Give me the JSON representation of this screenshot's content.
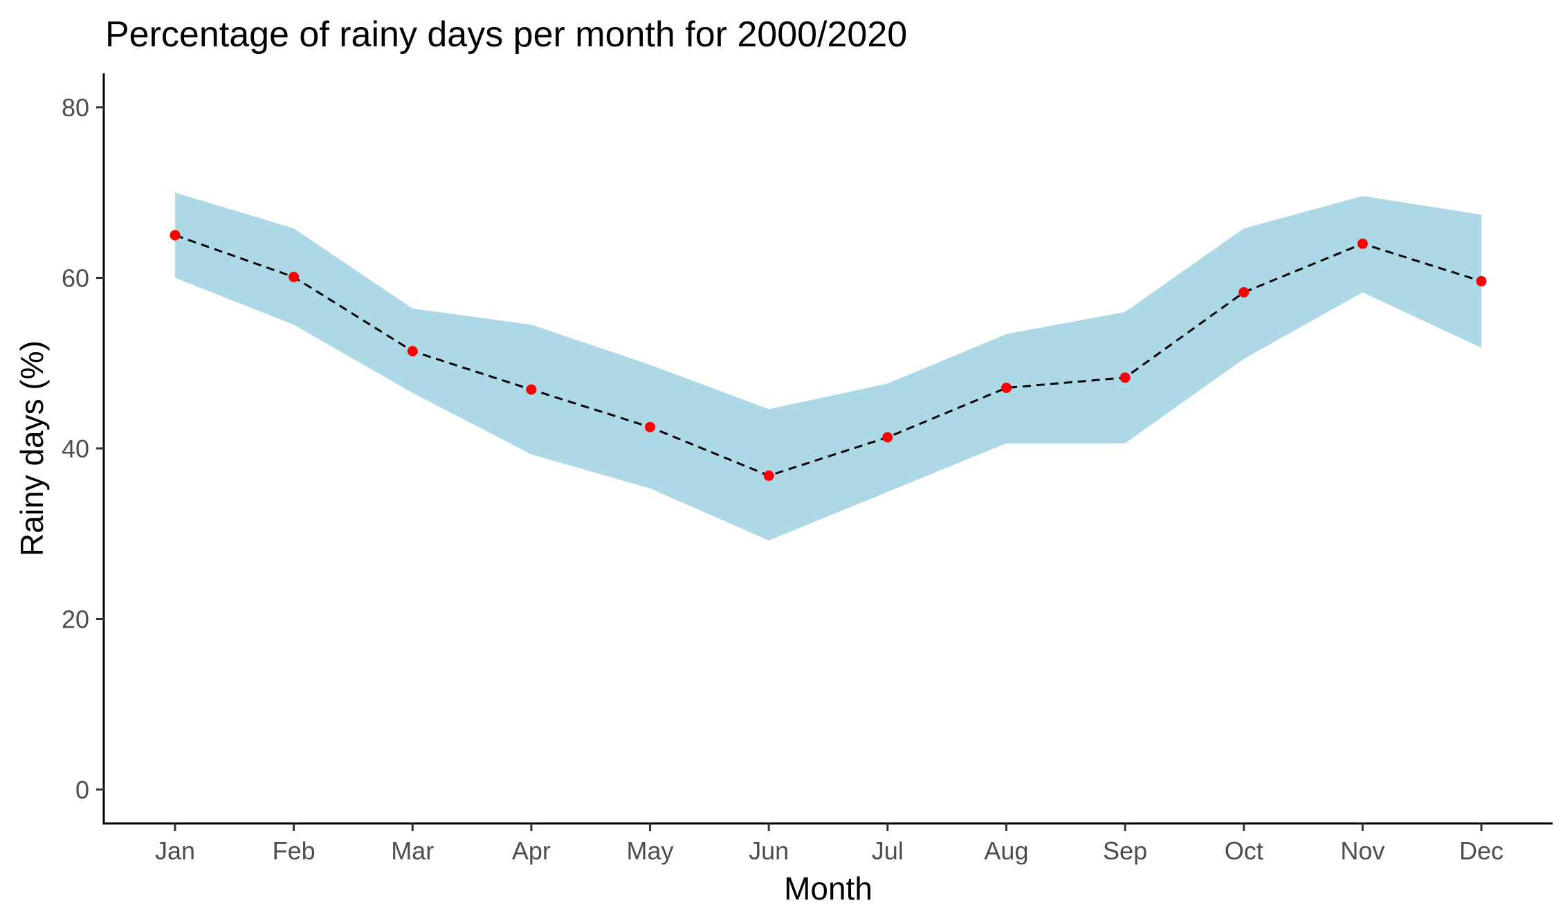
{
  "chart_data": {
    "type": "line",
    "title": "Percentage of rainy days per month for 2000/2020",
    "xlabel": "Month",
    "ylabel": "Rainy days (%)",
    "categories": [
      "Jan",
      "Feb",
      "Mar",
      "Apr",
      "May",
      "Jun",
      "Jul",
      "Aug",
      "Sep",
      "Oct",
      "Nov",
      "Dec"
    ],
    "y_ticks": [
      "0",
      "20",
      "40",
      "60",
      "80"
    ],
    "ylim": [
      -4,
      84
    ],
    "grid": false,
    "legend": "none",
    "series": [
      {
        "type": "line-with-points",
        "values": [
          65.0,
          60.1,
          51.4,
          46.9,
          42.5,
          36.8,
          41.3,
          47.1,
          48.3,
          58.3,
          64.0,
          59.6
        ],
        "line_style": "dashed",
        "line_color": "#000000",
        "point_color": "#ff0000"
      },
      {
        "type": "ribbon",
        "upper": [
          70.0,
          65.8,
          56.4,
          54.5,
          49.8,
          44.6,
          47.6,
          53.4,
          56.0,
          65.8,
          69.6,
          67.4
        ],
        "lower": [
          60.0,
          54.5,
          46.5,
          39.3,
          35.3,
          29.2,
          34.9,
          40.6,
          40.6,
          50.5,
          58.3,
          51.8
        ],
        "fill_color": "#add8e6"
      }
    ]
  }
}
